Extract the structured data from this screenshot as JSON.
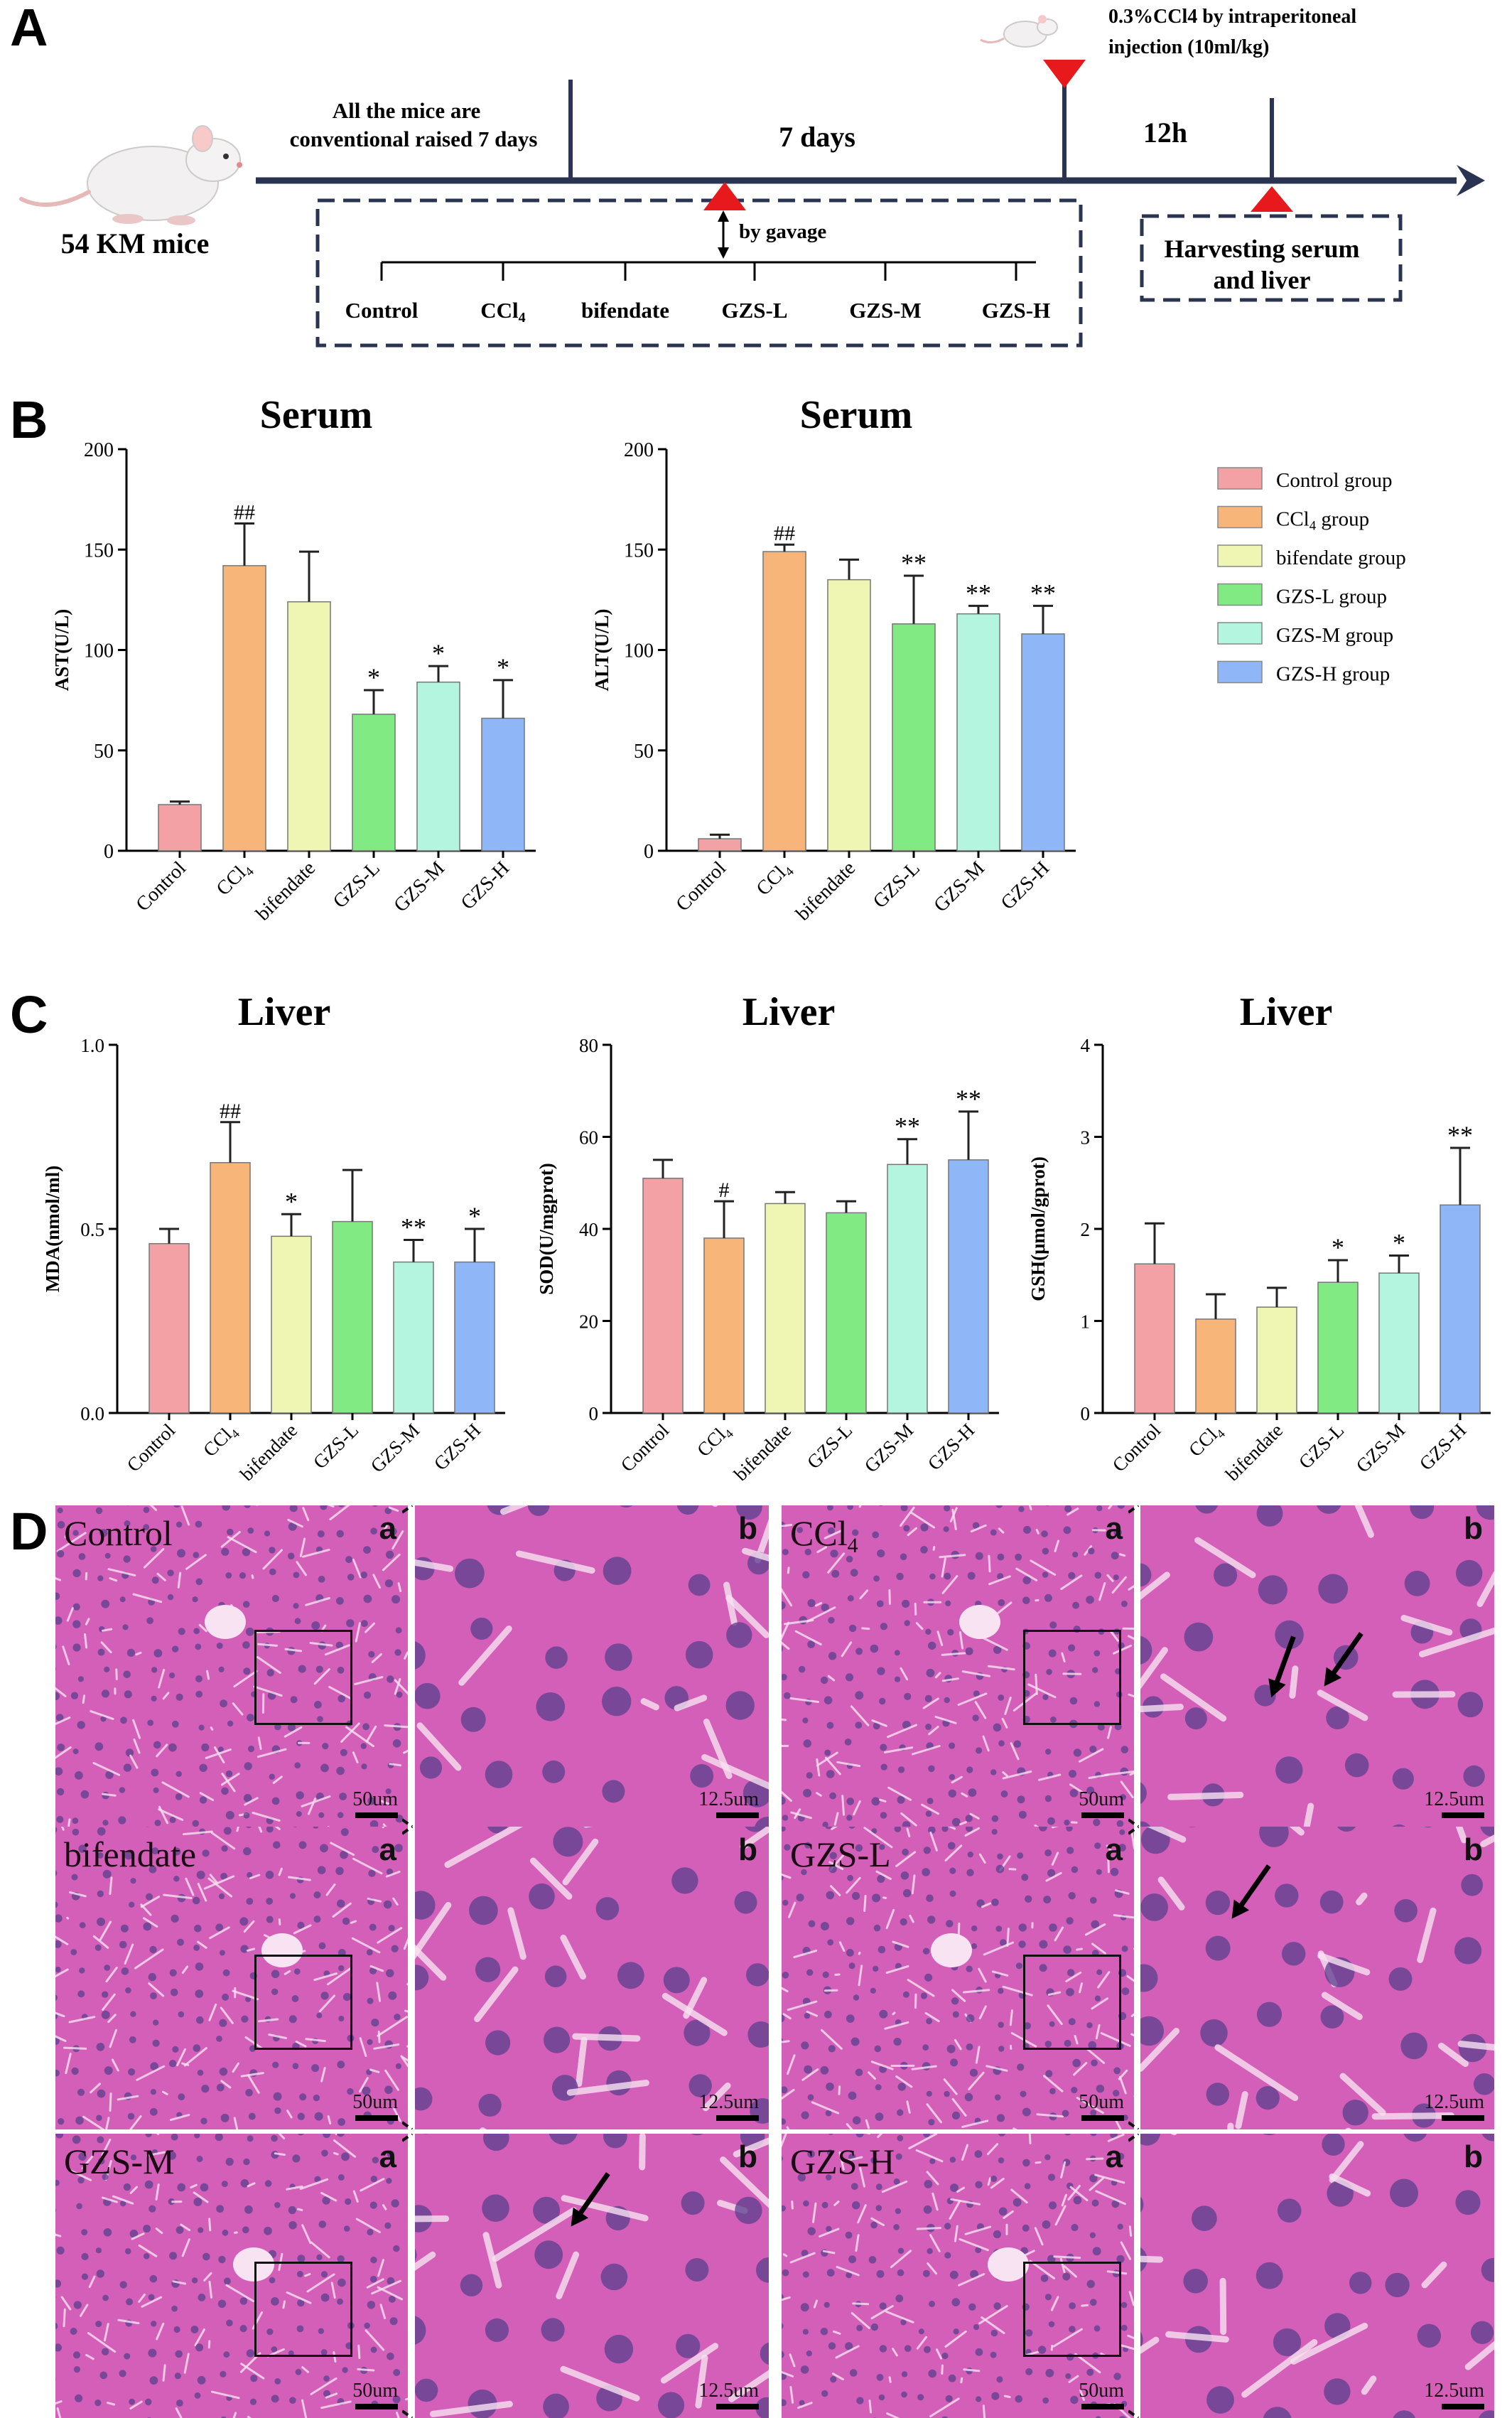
{
  "panels": {
    "A": "A",
    "B": "B",
    "C": "C",
    "D": "D"
  },
  "timeline": {
    "mice_label": "54 KM mice",
    "raised_line1": "All the mice are",
    "raised_line2": "conventional raised 7 days",
    "period_7days": "7 days",
    "period_12h": "12h",
    "injection_line1": "0.3%CCl4 by intraperitoneal",
    "injection_line2": "injection (10ml/kg)",
    "gavage_label": "by gavage",
    "harvest_line1": "Harvesting serum",
    "harvest_line2": "and liver",
    "groups": [
      "Control",
      "CCl4",
      "bifendate",
      "GZS-L",
      "GZS-M",
      "GZS-H"
    ],
    "colors": {
      "line": "#2a3352",
      "triangle": "#e8191c",
      "mouse": "#f0eeee"
    }
  },
  "legend": {
    "items": [
      {
        "label": "Control group",
        "color": "#f4a1a5"
      },
      {
        "label": "CCl4 group",
        "color": "#f7b57a"
      },
      {
        "label": "bifendate group",
        "color": "#eff5b3"
      },
      {
        "label": "GZS-L group",
        "color": "#82ea82"
      },
      {
        "label": "GZS-M group",
        "color": "#b3f5de"
      },
      {
        "label": "GZS-H group",
        "color": "#8fb7f7"
      }
    ]
  },
  "chart_data": [
    {
      "type": "bar",
      "title": "Serum",
      "ylabel": "AST(U/L)",
      "ylim": [
        0,
        200
      ],
      "yticks": [
        "0",
        "50",
        "100",
        "150",
        "200"
      ],
      "categories": [
        "Control",
        "CCl4",
        "bifendate",
        "GZS-L",
        "GZS-M",
        "GZS-H"
      ],
      "values": [
        23,
        142,
        124,
        68,
        84,
        66
      ],
      "errors": [
        1.5,
        21,
        25,
        12,
        8,
        19
      ],
      "annotations": [
        "",
        "##",
        "",
        "*",
        "*",
        "*"
      ]
    },
    {
      "type": "bar",
      "title": "Serum",
      "ylabel": "ALT(U/L)",
      "ylim": [
        0,
        200
      ],
      "yticks": [
        "0",
        "50",
        "100",
        "150",
        "200"
      ],
      "categories": [
        "Control",
        "CCl4",
        "bifendate",
        "GZS-L",
        "GZS-M",
        "GZS-H"
      ],
      "values": [
        6,
        149,
        135,
        113,
        118,
        108
      ],
      "errors": [
        2,
        3.5,
        10,
        24,
        4,
        14
      ],
      "annotations": [
        "",
        "##",
        "",
        "**",
        "**",
        "**"
      ]
    },
    {
      "type": "bar",
      "title": "Liver",
      "ylabel": "MDA(nmol/ml)",
      "ylim": [
        0,
        1.0
      ],
      "yticks": [
        "0.0",
        "0.5",
        "1.0"
      ],
      "categories": [
        "Control",
        "CCl4",
        "bifendate",
        "GZS-L",
        "GZS-M",
        "GZS-H"
      ],
      "values": [
        0.46,
        0.68,
        0.48,
        0.52,
        0.41,
        0.41
      ],
      "errors": [
        0.04,
        0.11,
        0.06,
        0.14,
        0.06,
        0.09
      ],
      "annotations": [
        "",
        "##",
        "*",
        "",
        "**",
        "*"
      ]
    },
    {
      "type": "bar",
      "title": "Liver",
      "ylabel": "SOD(U/mgprot)",
      "ylim": [
        0,
        80
      ],
      "yticks": [
        "0",
        "20",
        "40",
        "60",
        "80"
      ],
      "categories": [
        "Control",
        "CCl4",
        "bifendate",
        "GZS-L",
        "GZS-M",
        "GZS-H"
      ],
      "values": [
        51,
        38,
        45.5,
        43.5,
        54,
        55
      ],
      "errors": [
        4,
        8,
        2.5,
        2.5,
        5.5,
        10.5
      ],
      "annotations": [
        "",
        "#",
        "",
        "",
        "**",
        "**"
      ]
    },
    {
      "type": "bar",
      "title": "Liver",
      "ylabel": "GSH(μmol/gprot)",
      "ylim": [
        0,
        4
      ],
      "yticks": [
        "0",
        "1",
        "2",
        "3",
        "4"
      ],
      "categories": [
        "Control",
        "CCl4",
        "bifendate",
        "GZS-L",
        "GZS-M",
        "GZS-H"
      ],
      "values": [
        1.62,
        1.02,
        1.15,
        1.42,
        1.52,
        2.26
      ],
      "errors": [
        0.44,
        0.27,
        0.21,
        0.24,
        0.19,
        0.62
      ],
      "annotations": [
        "",
        "",
        "",
        "*",
        "*",
        "**"
      ]
    }
  ],
  "histology": {
    "panels": [
      {
        "name": "Control",
        "a": "a",
        "b": "b",
        "scale_a": "50um",
        "scale_b": "12.5um"
      },
      {
        "name": "CCl4",
        "a": "a",
        "b": "b",
        "scale_a": "50um",
        "scale_b": "12.5um"
      },
      {
        "name": "bifendate",
        "a": "a",
        "b": "b",
        "scale_a": "50um",
        "scale_b": "12.5um"
      },
      {
        "name": "GZS-L",
        "a": "a",
        "b": "b",
        "scale_a": "50um",
        "scale_b": "12.5um"
      },
      {
        "name": "GZS-M",
        "a": "a",
        "b": "b",
        "scale_a": "50um",
        "scale_b": "12.5um"
      },
      {
        "name": "GZS-H",
        "a": "a",
        "b": "b",
        "scale_a": "50um",
        "scale_b": "12.5um"
      }
    ],
    "colors": {
      "tissue": "#d45fb8",
      "tissue_dark": "#9a3f95",
      "nucleus": "#5b3f8e",
      "sinusoid": "#f7e3f2"
    }
  }
}
